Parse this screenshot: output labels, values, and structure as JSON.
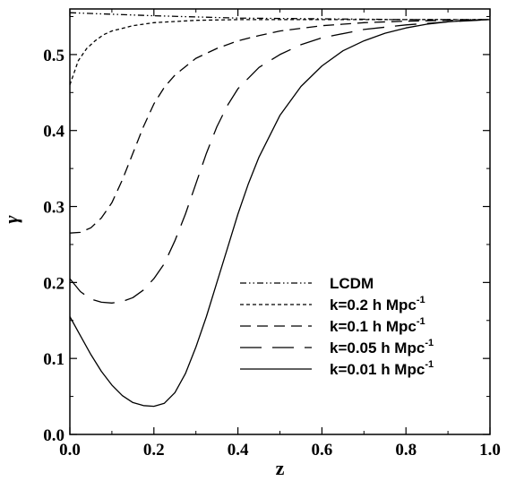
{
  "chart_data": {
    "type": "line",
    "xlabel": "z",
    "ylabel": "γ",
    "xlim": [
      0.0,
      1.0
    ],
    "ylim": [
      0.0,
      0.56
    ],
    "x_ticks": [
      "0.0",
      "0.2",
      "0.4",
      "0.6",
      "0.8",
      "1.0"
    ],
    "y_ticks": [
      "0.0",
      "0.1",
      "0.2",
      "0.3",
      "0.4",
      "0.5"
    ],
    "legend_position": "lower-right",
    "series": [
      {
        "name": "LCDM",
        "legend_main": "LCDM",
        "legend_sup": "",
        "style": "dashdotdot",
        "x": [
          0.0,
          0.2,
          0.4,
          0.6,
          0.8,
          1.0
        ],
        "y": [
          0.555,
          0.551,
          0.548,
          0.547,
          0.546,
          0.546
        ]
      },
      {
        "name": "k=0.2 h Mpc-1",
        "legend_main": "k=0.2 h Mpc",
        "legend_sup": "-1",
        "style": "short-dash",
        "x": [
          0.0,
          0.02,
          0.04,
          0.06,
          0.08,
          0.1,
          0.15,
          0.2,
          0.3,
          0.4,
          0.5,
          0.6,
          0.8,
          1.0
        ],
        "y": [
          0.46,
          0.492,
          0.508,
          0.518,
          0.526,
          0.531,
          0.538,
          0.542,
          0.545,
          0.546,
          0.546,
          0.546,
          0.546,
          0.546
        ]
      },
      {
        "name": "k=0.1 h Mpc-1",
        "legend_main": "k=0.1 h Mpc",
        "legend_sup": "-1",
        "style": "medium-dash",
        "x": [
          0.0,
          0.025,
          0.05,
          0.075,
          0.1,
          0.125,
          0.15,
          0.175,
          0.2,
          0.225,
          0.25,
          0.3,
          0.35,
          0.4,
          0.45,
          0.5,
          0.6,
          0.7,
          0.8,
          0.9,
          1.0
        ],
        "y": [
          0.265,
          0.266,
          0.272,
          0.285,
          0.305,
          0.335,
          0.37,
          0.405,
          0.435,
          0.457,
          0.473,
          0.495,
          0.508,
          0.518,
          0.525,
          0.531,
          0.538,
          0.542,
          0.544,
          0.545,
          0.546
        ]
      },
      {
        "name": "k=0.05 h Mpc-1",
        "legend_main": "k=0.05 h Mpc",
        "legend_sup": "-1",
        "style": "long-dash",
        "x": [
          0.0,
          0.025,
          0.05,
          0.075,
          0.1,
          0.125,
          0.15,
          0.175,
          0.2,
          0.225,
          0.25,
          0.275,
          0.3,
          0.325,
          0.35,
          0.375,
          0.4,
          0.45,
          0.5,
          0.55,
          0.6,
          0.7,
          0.8,
          0.9,
          1.0
        ],
        "y": [
          0.205,
          0.188,
          0.178,
          0.174,
          0.173,
          0.175,
          0.18,
          0.19,
          0.205,
          0.225,
          0.255,
          0.29,
          0.33,
          0.37,
          0.405,
          0.433,
          0.455,
          0.483,
          0.5,
          0.513,
          0.522,
          0.533,
          0.539,
          0.543,
          0.546
        ]
      },
      {
        "name": "k=0.01 h Mpc-1",
        "legend_main": "k=0.01 h Mpc",
        "legend_sup": "-1",
        "style": "solid",
        "x": [
          0.0,
          0.025,
          0.05,
          0.075,
          0.1,
          0.125,
          0.15,
          0.175,
          0.2,
          0.225,
          0.25,
          0.275,
          0.3,
          0.325,
          0.35,
          0.375,
          0.4,
          0.425,
          0.45,
          0.5,
          0.55,
          0.6,
          0.65,
          0.7,
          0.75,
          0.8,
          0.85,
          0.9,
          0.95,
          1.0
        ],
        "y": [
          0.155,
          0.13,
          0.105,
          0.083,
          0.065,
          0.051,
          0.042,
          0.038,
          0.037,
          0.041,
          0.055,
          0.08,
          0.115,
          0.155,
          0.2,
          0.245,
          0.29,
          0.33,
          0.365,
          0.42,
          0.458,
          0.485,
          0.505,
          0.518,
          0.528,
          0.535,
          0.54,
          0.543,
          0.545,
          0.546
        ]
      }
    ]
  }
}
